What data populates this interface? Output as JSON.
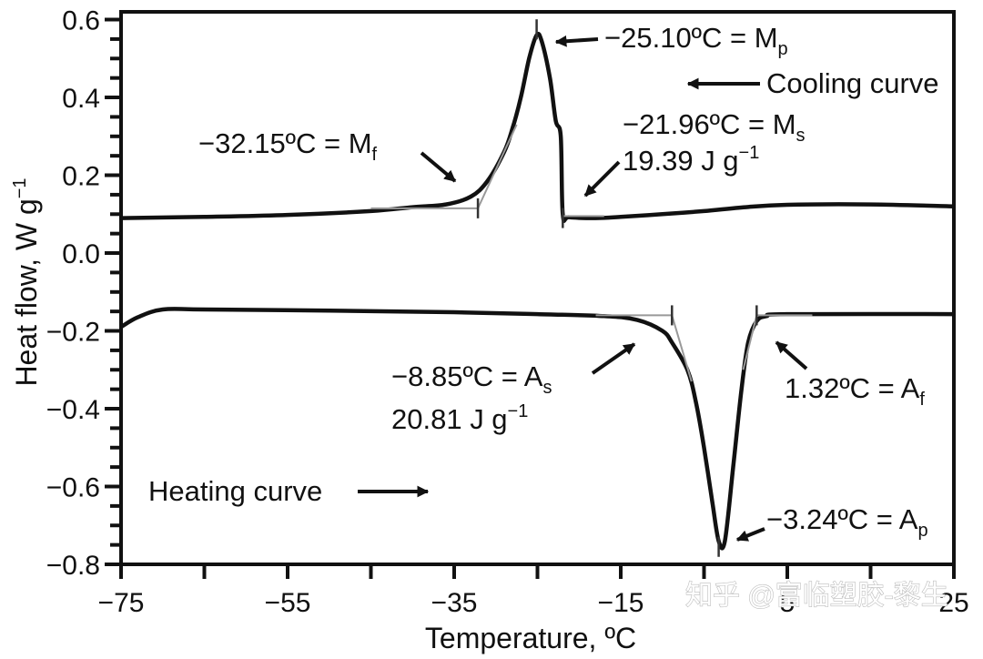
{
  "chart_data": {
    "type": "line",
    "xlabel": "Temperature, ºC",
    "ylabel": "Heat flow, W g",
    "ylabel_sup": "−1",
    "xlim": [
      -75,
      25
    ],
    "ylim": [
      -0.8,
      0.62
    ],
    "x_ticks": [
      "−75",
      "−55",
      "−35",
      "−15",
      "5",
      "25"
    ],
    "x_tick_values": [
      -75,
      -55,
      -35,
      -15,
      5,
      25
    ],
    "y_ticks": [
      "0.6",
      "0.4",
      "0.2",
      "0.0",
      "−0.2",
      "−0.4",
      "−0.6",
      "−0.8"
    ],
    "y_tick_values": [
      0.6,
      0.4,
      0.2,
      0.0,
      -0.2,
      -0.4,
      -0.6,
      -0.8
    ],
    "grid": false,
    "series": [
      {
        "role": "cooling",
        "color": "#111111",
        "points": [
          [
            -75,
            0.09
          ],
          [
            -65,
            0.093
          ],
          [
            -55,
            0.098
          ],
          [
            -45,
            0.108
          ],
          [
            -40,
            0.118
          ],
          [
            -36,
            0.125
          ],
          [
            -33,
            0.145
          ],
          [
            -31,
            0.185
          ],
          [
            -29,
            0.26
          ],
          [
            -28,
            0.32
          ],
          [
            -27,
            0.4
          ],
          [
            -26,
            0.5
          ],
          [
            -25.1,
            0.56
          ],
          [
            -24.5,
            0.545
          ],
          [
            -23.5,
            0.45
          ],
          [
            -22.8,
            0.34
          ],
          [
            -22.2,
            0.3
          ],
          [
            -21.96,
            0.1
          ],
          [
            -21.2,
            0.092
          ],
          [
            -18,
            0.09
          ],
          [
            -15,
            0.093
          ],
          [
            -10,
            0.1
          ],
          [
            -5,
            0.108
          ],
          [
            0,
            0.118
          ],
          [
            5,
            0.124
          ],
          [
            15,
            0.125
          ],
          [
            25,
            0.12
          ]
        ]
      },
      {
        "role": "heating",
        "color": "#111111",
        "points": [
          [
            -75,
            -0.19
          ],
          [
            -73,
            -0.165
          ],
          [
            -70,
            -0.145
          ],
          [
            -65,
            -0.145
          ],
          [
            -50,
            -0.148
          ],
          [
            -35,
            -0.152
          ],
          [
            -25,
            -0.157
          ],
          [
            -17,
            -0.162
          ],
          [
            -13,
            -0.172
          ],
          [
            -10,
            -0.2
          ],
          [
            -8.85,
            -0.23
          ],
          [
            -7,
            -0.3
          ],
          [
            -6,
            -0.38
          ],
          [
            -5,
            -0.5
          ],
          [
            -4,
            -0.64
          ],
          [
            -3.24,
            -0.74
          ],
          [
            -2.5,
            -0.74
          ],
          [
            -1.5,
            -0.55
          ],
          [
            -0.5,
            -0.35
          ],
          [
            0.3,
            -0.23
          ],
          [
            1.32,
            -0.175
          ],
          [
            2.5,
            -0.162
          ],
          [
            5,
            -0.157
          ],
          [
            25,
            -0.157
          ]
        ]
      }
    ],
    "annotations": [
      {
        "id": "mp",
        "text": "−25.10ºC = M",
        "sub": "p"
      },
      {
        "id": "mf",
        "text": "−32.15ºC = M",
        "sub": "f"
      },
      {
        "id": "ms",
        "text": "−21.96ºC = M",
        "sub": "s"
      },
      {
        "id": "cool-enthalpy",
        "text": "19.39 J g",
        "sup": "−1"
      },
      {
        "id": "as",
        "text": "−8.85ºC = A",
        "sub": "s"
      },
      {
        "id": "heat-enthalpy",
        "text": "20.81 J g",
        "sup": "−1"
      },
      {
        "id": "af",
        "text": "1.32ºC = A",
        "sub": "f"
      },
      {
        "id": "ap",
        "text": "−3.24ºC = A",
        "sub": "p"
      }
    ],
    "legend_labels": {
      "cooling": "Cooling curve",
      "heating": "Heating curve"
    }
  },
  "watermark": "知乎 @富临塑胶-黎生"
}
